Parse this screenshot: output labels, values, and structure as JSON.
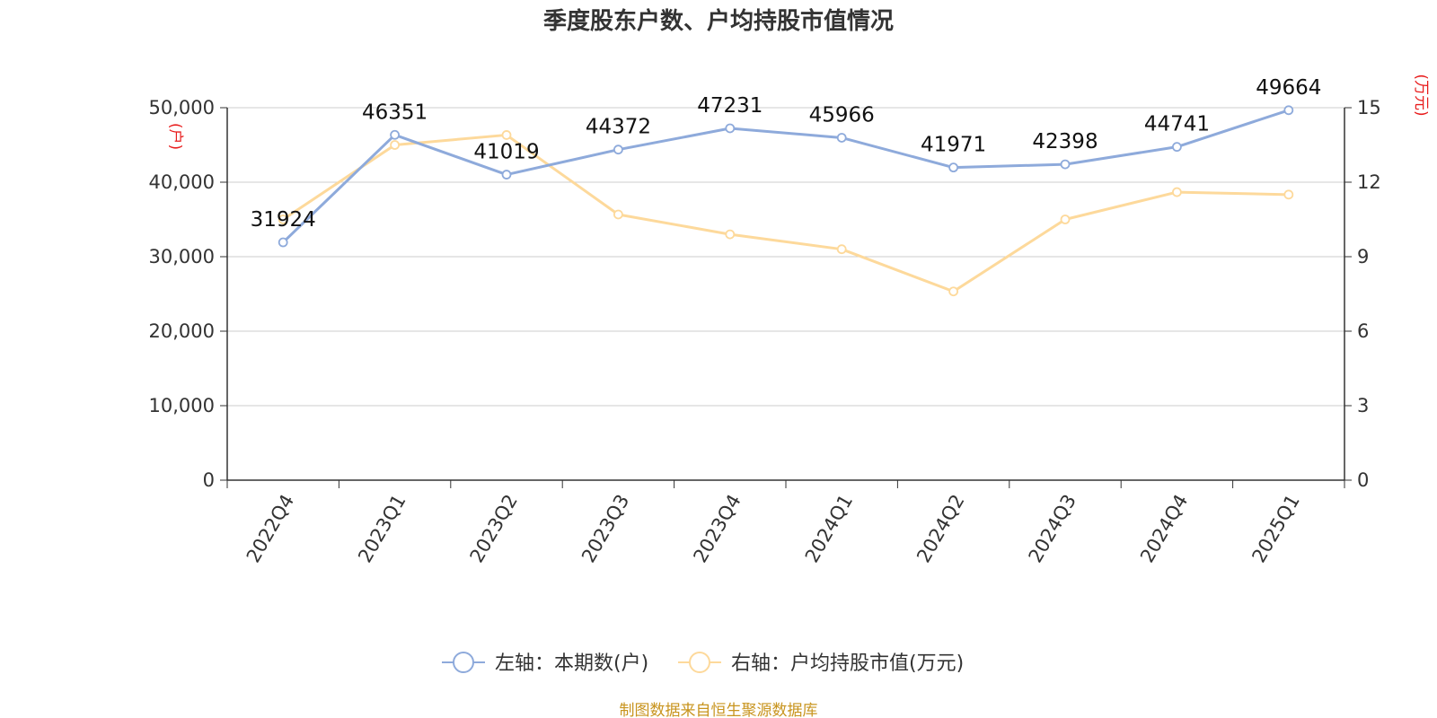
{
  "chart_data": {
    "type": "line",
    "title": "季度股东户数、户均持股市值情况",
    "categories": [
      "2022Q4",
      "2023Q1",
      "2023Q2",
      "2023Q3",
      "2023Q4",
      "2024Q1",
      "2024Q2",
      "2024Q3",
      "2024Q4",
      "2025Q1"
    ],
    "left_axis": {
      "unit_label": "(户)",
      "ylim": [
        0,
        50000
      ],
      "ticks": [
        "0",
        "10,000",
        "20,000",
        "30,000",
        "40,000",
        "50,000"
      ],
      "tick_values": [
        0,
        10000,
        20000,
        30000,
        40000,
        50000
      ]
    },
    "right_axis": {
      "unit_label": "(万元)",
      "ylim": [
        0,
        15
      ],
      "ticks": [
        "0",
        "3",
        "6",
        "9",
        "12",
        "15"
      ],
      "tick_values": [
        0,
        3,
        6,
        9,
        12,
        15
      ]
    },
    "series": [
      {
        "name": "左轴：本期数(户)",
        "axis": "left",
        "color": "#8eaadb",
        "values": [
          31924,
          46351,
          41019,
          44372,
          47231,
          45966,
          41971,
          42398,
          44741,
          49664
        ],
        "labels": [
          "31924",
          "46351",
          "41019",
          "44372",
          "47231",
          "45966",
          "41971",
          "42398",
          "44741",
          "49664"
        ]
      },
      {
        "name": "右轴：户均持股市值(万元)",
        "axis": "right",
        "color": "#fdd99b",
        "values": [
          10.5,
          13.5,
          13.9,
          10.7,
          9.9,
          9.3,
          7.6,
          10.5,
          11.6,
          11.5
        ]
      }
    ],
    "grid": true,
    "legend_position": "bottom-center"
  },
  "source": "制图数据来自恒生聚源数据库"
}
